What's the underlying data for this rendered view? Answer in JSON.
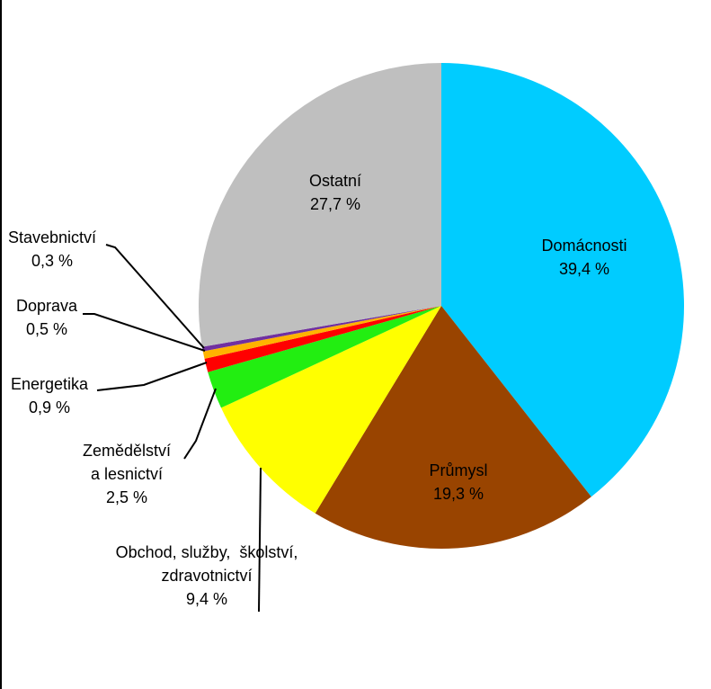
{
  "chart_data": {
    "type": "pie",
    "title": "",
    "start_angle_deg": 0,
    "direction": "clockwise",
    "slices": [
      {
        "name": "Domácnosti",
        "value": 39.4,
        "value_label": "39,4 %",
        "color": "#00CCFF"
      },
      {
        "name": "Průmysl",
        "value": 19.3,
        "value_label": "19,3 %",
        "color": "#994400"
      },
      {
        "name": "Obchod, služby,  školství, zdravotnictví",
        "value": 9.4,
        "value_label": "9,4 %",
        "color": "#FFFF00"
      },
      {
        "name": "Zemědělství a lesnictví",
        "value": 2.5,
        "value_label": "2,5 %",
        "color": "#22EE11"
      },
      {
        "name": "Energetika",
        "value": 0.9,
        "value_label": "0,9 %",
        "color": "#FF0000"
      },
      {
        "name": "Doprava",
        "value": 0.5,
        "value_label": "0,5 %",
        "color": "#FFB300"
      },
      {
        "name": "Stavebnictví",
        "value": 0.3,
        "value_label": "0,3 %",
        "color": "#7030A0"
      },
      {
        "name": "Ostatní",
        "value": 27.7,
        "value_label": "27,7 %",
        "color": "#BFBFBF"
      }
    ]
  },
  "labels": {
    "domacnosti": {
      "lines": [
        "Domácnosti"
      ],
      "value": "39,4 %"
    },
    "prumysl": {
      "lines": [
        "Průmysl"
      ],
      "value": "19,3 %"
    },
    "obchod": {
      "lines": [
        "Obchod, služby,  školství,",
        "zdravotnictví"
      ],
      "value": "9,4 %"
    },
    "zemedelstvi": {
      "lines": [
        "Zemědělství",
        "a lesnictví"
      ],
      "value": "2,5 %"
    },
    "energetika": {
      "lines": [
        "Energetika"
      ],
      "value": "0,9 %"
    },
    "doprava": {
      "lines": [
        "Doprava"
      ],
      "value": "0,5 %"
    },
    "stavebnictvi": {
      "lines": [
        "Stavebnictví"
      ],
      "value": "0,3 %"
    },
    "ostatni": {
      "lines": [
        "Ostatní"
      ],
      "value": "27,7 %"
    }
  }
}
